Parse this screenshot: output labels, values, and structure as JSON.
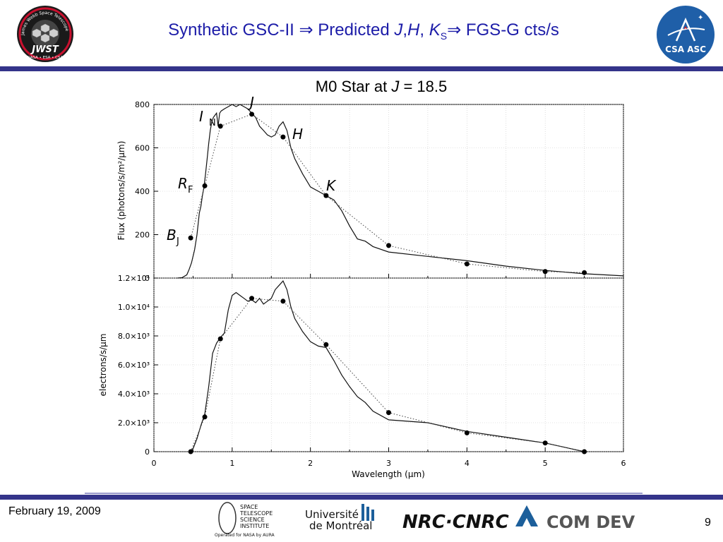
{
  "header": {
    "title_pre": "Synthetic GSC-II ",
    "arrow": "⇒",
    "title_mid": " Predicted ",
    "J": "J",
    "comma1": ",",
    "H": "H",
    "comma2": ", ",
    "K": "K",
    "S": "S",
    "title_post": " FGS-G cts/s"
  },
  "logos": {
    "jwst_text": "JWST",
    "jwst_ring": "James Webb Space Telescope",
    "jwst_sub": "NASA • ESA • CSA",
    "csa_text": "CSA ASC",
    "stsci": [
      "SPACE",
      "TELESCOPE",
      "SCIENCE",
      "INSTITUTE"
    ],
    "stsci_sub": "Operated for NASA by AURA",
    "udem_1": "Université",
    "udem_2": "de Montréal",
    "nrc": "NRC·CNRC",
    "comdev": "COM DEV"
  },
  "footer": {
    "date": "February 19, 2009",
    "page": "9"
  },
  "colors": {
    "header_blue": "#1c1ca8",
    "rule_navy": "#34348a",
    "csa_blue": "#1f5fa8",
    "comdev_blue": "#1c5f9b"
  },
  "chart_data": [
    {
      "type": "line",
      "title": "M0 Star at J = 18.5",
      "title_pre": "M0 Star at ",
      "title_var": "J",
      "title_post": " = 18.5",
      "ylabel": "Flux (photons/s/m²/μm)",
      "xlim": [
        0,
        6
      ],
      "ylim": [
        0,
        800
      ],
      "yticks": [
        0,
        200,
        400,
        600,
        800
      ],
      "ytick_labels": [
        "0",
        "200",
        "400",
        "600",
        "800"
      ],
      "series": [
        {
          "style": "solid",
          "x": [
            0.3,
            0.36,
            0.42,
            0.45,
            0.48,
            0.52,
            0.55,
            0.58,
            0.6,
            0.62,
            0.64,
            0.66,
            0.68,
            0.7,
            0.72,
            0.74,
            0.76,
            0.78,
            0.8,
            0.82,
            0.84,
            0.86,
            0.9,
            0.95,
            1.0,
            1.05,
            1.1,
            1.15,
            1.2,
            1.25,
            1.3,
            1.35,
            1.4,
            1.45,
            1.5,
            1.55,
            1.6,
            1.65,
            1.7,
            1.75,
            1.8,
            1.9,
            2.0,
            2.1,
            2.2,
            2.3,
            2.4,
            2.5,
            2.6,
            2.7,
            2.8,
            3.0,
            3.5,
            4.0,
            4.5,
            5.0,
            5.5,
            6.0
          ],
          "y": [
            0,
            2,
            15,
            40,
            70,
            130,
            200,
            300,
            330,
            380,
            420,
            480,
            550,
            620,
            680,
            720,
            740,
            750,
            760,
            700,
            760,
            770,
            780,
            790,
            800,
            790,
            800,
            790,
            780,
            760,
            740,
            700,
            680,
            660,
            650,
            660,
            700,
            720,
            680,
            600,
            550,
            480,
            420,
            400,
            380,
            360,
            310,
            240,
            180,
            170,
            145,
            120,
            100,
            80,
            55,
            35,
            20,
            10
          ]
        },
        {
          "style": "dotted",
          "x": [
            0.47,
            0.65,
            0.85,
            1.25,
            1.65,
            2.2,
            3.0,
            4.0,
            5.0,
            5.5
          ],
          "y": [
            185,
            425,
            700,
            755,
            650,
            380,
            150,
            65,
            30,
            25
          ]
        }
      ],
      "annotations": [
        {
          "letter": "B",
          "sub": "J"
        },
        {
          "letter": "R",
          "sub": "F"
        },
        {
          "letter": "I",
          "sub": "N"
        },
        {
          "letter": "J",
          "sub": ""
        },
        {
          "letter": "H",
          "sub": ""
        },
        {
          "letter": "K",
          "sub": ""
        }
      ]
    },
    {
      "type": "line",
      "xlabel": "Wavelength (μm)",
      "ylabel": "electrons/s/μm",
      "xlim": [
        0,
        6
      ],
      "ylim": [
        0,
        12000
      ],
      "xticks": [
        0,
        1,
        2,
        3,
        4,
        5,
        6
      ],
      "xtick_labels": [
        "0",
        "1",
        "2",
        "3",
        "4",
        "5",
        "6"
      ],
      "yticks": [
        0,
        2000,
        4000,
        6000,
        8000,
        10000,
        12000
      ],
      "ytick_labels": [
        "0",
        "2.0×10³",
        "4.0×10³",
        "6.0×10³",
        "8.0×10³",
        "1.0×10⁴",
        "1.2×10⁴"
      ],
      "series": [
        {
          "style": "solid",
          "x": [
            0.45,
            0.5,
            0.55,
            0.6,
            0.65,
            0.7,
            0.75,
            0.8,
            0.85,
            0.9,
            0.95,
            1.0,
            1.05,
            1.1,
            1.15,
            1.2,
            1.25,
            1.3,
            1.35,
            1.4,
            1.45,
            1.5,
            1.55,
            1.6,
            1.65,
            1.7,
            1.75,
            1.8,
            1.9,
            2.0,
            2.1,
            2.2,
            2.3,
            2.4,
            2.5,
            2.6,
            2.7,
            2.8,
            3.0,
            3.5,
            4.0,
            4.5,
            5.0,
            5.5
          ],
          "y": [
            0,
            200,
            900,
            1800,
            2600,
            4500,
            6800,
            7500,
            7900,
            8200,
            9800,
            10800,
            11000,
            10800,
            10600,
            10400,
            10500,
            10300,
            10600,
            10200,
            10400,
            10600,
            11200,
            11500,
            11800,
            11200,
            10000,
            9200,
            8300,
            7600,
            7300,
            7200,
            6300,
            5300,
            4500,
            3800,
            3400,
            2800,
            2200,
            2000,
            1400,
            1000,
            600,
            0
          ]
        },
        {
          "style": "dotted",
          "x": [
            0.47,
            0.65,
            0.85,
            1.25,
            1.65,
            2.2,
            3.0,
            4.0,
            5.0,
            5.5
          ],
          "y": [
            0,
            2400,
            7800,
            10600,
            10400,
            7400,
            2700,
            1300,
            600,
            0
          ]
        }
      ]
    }
  ]
}
